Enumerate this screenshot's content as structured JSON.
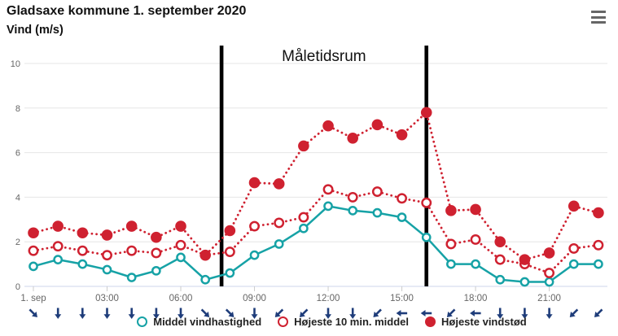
{
  "header": {
    "title": "Gladsaxe kommune 1. september 2020",
    "subtitle": "Vind (m/s)"
  },
  "chart_data": {
    "type": "line",
    "title": "Gladsaxe kommune 1. september 2020",
    "ylabel": "Vind (m/s)",
    "categories": [
      "00:00",
      "01:00",
      "02:00",
      "03:00",
      "04:00",
      "05:00",
      "06:00",
      "07:00",
      "08:00",
      "09:00",
      "10:00",
      "11:00",
      "12:00",
      "13:00",
      "14:00",
      "15:00",
      "16:00",
      "17:00",
      "18:00",
      "19:00",
      "20:00",
      "21:00",
      "22:00",
      "23:00"
    ],
    "xtick_labels": [
      "1. sep",
      "03:00",
      "06:00",
      "09:00",
      "12:00",
      "15:00",
      "18:00",
      "21:00"
    ],
    "xtick_hours": [
      0,
      3,
      6,
      9,
      12,
      15,
      18,
      21
    ],
    "yticks": [
      0,
      2,
      4,
      6,
      8,
      10
    ],
    "ylim": [
      0,
      10.8
    ],
    "grid": true,
    "legend_position": "bottom",
    "series": [
      {
        "name": "Middel vindhastighed",
        "color": "#16a2a6",
        "line": "solid",
        "marker": "open",
        "marker_r": 4.6,
        "values": [
          0.9,
          1.2,
          1.0,
          0.75,
          0.4,
          0.7,
          1.3,
          0.3,
          0.6,
          1.4,
          1.9,
          2.6,
          3.6,
          3.4,
          3.3,
          3.1,
          2.2,
          1.0,
          1.0,
          0.3,
          0.2,
          0.2,
          1.0,
          1.0
        ]
      },
      {
        "name": "Højeste 10 min. middel",
        "color": "#cf2130",
        "line": "dotted",
        "marker": "open",
        "marker_r": 5.2,
        "values": [
          1.6,
          1.8,
          1.6,
          1.4,
          1.6,
          1.5,
          1.85,
          1.4,
          1.55,
          2.7,
          2.85,
          3.1,
          4.35,
          4.0,
          4.25,
          3.95,
          3.75,
          1.9,
          2.1,
          1.2,
          1.0,
          0.6,
          1.7,
          1.85
        ]
      },
      {
        "name": "Højeste vindstød",
        "color": "#cf2130",
        "line": "dotted",
        "marker": "filled",
        "marker_r": 6.8,
        "values": [
          2.4,
          2.7,
          2.4,
          2.3,
          2.7,
          2.2,
          2.7,
          1.4,
          2.5,
          4.65,
          4.6,
          6.3,
          7.2,
          6.65,
          7.25,
          6.8,
          7.8,
          3.4,
          3.45,
          2.0,
          1.2,
          1.5,
          3.6,
          3.3
        ]
      }
    ],
    "measurement_band": {
      "label": "Måletidsrum",
      "start_hour": 7.66,
      "end_hour": 16.0,
      "line_color": "#000000"
    },
    "wind_arrows": {
      "color": "#1f3d7a",
      "rotations_deg": [
        -45,
        0,
        0,
        0,
        0,
        0,
        0,
        -45,
        -45,
        0,
        45,
        45,
        0,
        0,
        45,
        90,
        90,
        45,
        90,
        0,
        0,
        0,
        45,
        45
      ]
    }
  },
  "legend": {
    "items": [
      {
        "label": "Middel vindhastighed"
      },
      {
        "label": "Højeste 10 min. middel"
      },
      {
        "label": "Højeste vindstød"
      }
    ]
  }
}
